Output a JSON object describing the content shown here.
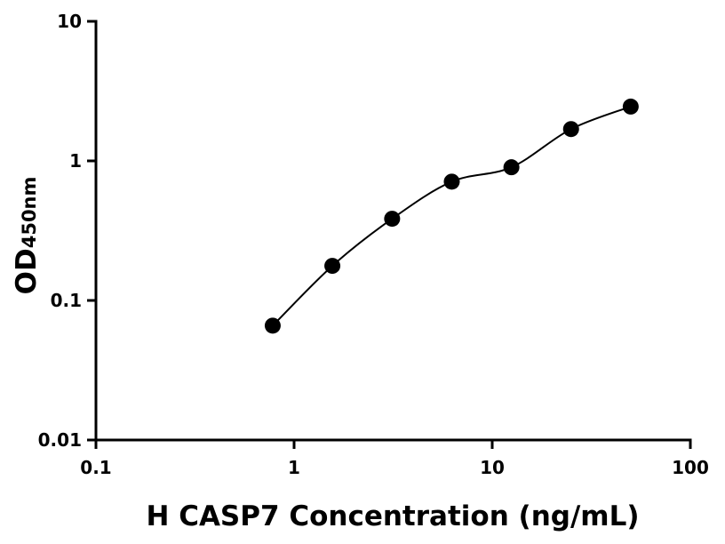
{
  "chart_data": {
    "type": "scatter",
    "x_label": "H CASP7 Concentration (ng/mL)",
    "y_label": "OD",
    "y_label_subscript": "450nm",
    "xscale": "log",
    "yscale": "log",
    "xlim": [
      0.1,
      100
    ],
    "xticks": [
      0.1,
      1,
      10,
      100
    ],
    "ylim": [
      0.01,
      10
    ],
    "yticks": [
      0.01,
      0.1,
      1,
      10
    ],
    "fit_curve": true,
    "series": [
      {
        "color": "#000000",
        "x": [
          0.78,
          1.56,
          3.125,
          6.25,
          12.5,
          25,
          50
        ],
        "values": [
          0.066,
          0.177,
          0.385,
          0.71,
          0.9,
          1.69,
          2.45
        ]
      }
    ]
  }
}
